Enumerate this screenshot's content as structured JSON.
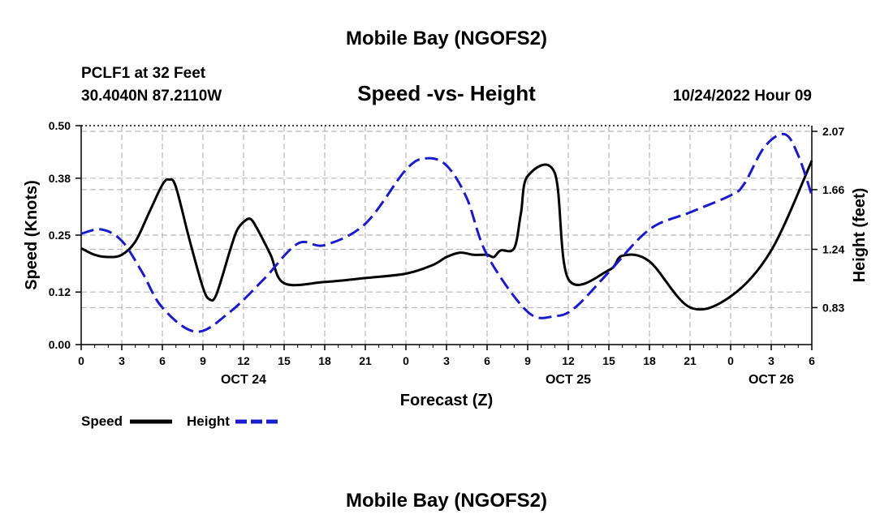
{
  "page": {
    "title": "Mobile Bay (NGOFS2)",
    "footer_title": "Mobile Bay (NGOFS2)",
    "station_line1": "PCLF1 at 32 Feet",
    "station_line2": "30.4040N  87.2110W",
    "subtitle": "Speed -vs- Height",
    "timestamp": "10/24/2022 Hour 09"
  },
  "chart_data": {
    "type": "line",
    "title": "Speed -vs- Height",
    "xlabel": "Forecast (Z)",
    "ylabel": "Speed (Knots)",
    "y2label": "Height (feet)",
    "xlim": [
      0,
      54
    ],
    "ylim": [
      0,
      0.5
    ],
    "y2lim": [
      0.57,
      2.11
    ],
    "grid": true,
    "legend_placement": "bottom-left",
    "x_ticks": [
      0,
      3,
      6,
      9,
      12,
      15,
      18,
      21,
      24,
      27,
      30,
      33,
      36,
      39,
      42,
      45,
      48,
      51,
      54
    ],
    "x_tick_labels": [
      "0",
      "3",
      "6",
      "9",
      "12",
      "15",
      "18",
      "21",
      "0",
      "3",
      "6",
      "9",
      "12",
      "15",
      "18",
      "21",
      "0",
      "3",
      "6"
    ],
    "date_labels": [
      {
        "x": 12,
        "label": "OCT 24"
      },
      {
        "x": 36,
        "label": "OCT 25"
      },
      {
        "x": 51,
        "label": "OCT 26"
      }
    ],
    "y_ticks": [
      0,
      0.12,
      0.25,
      0.38,
      0.5
    ],
    "y_tick_labels": [
      "0.00",
      "0.12",
      "0.25",
      "0.38",
      "0.50"
    ],
    "y2_ticks": [
      0.83,
      1.24,
      1.66,
      2.07
    ],
    "y2_tick_labels": [
      "0.83",
      "1.24",
      "1.66",
      "2.07"
    ],
    "series": [
      {
        "name": "Speed",
        "axis": "left",
        "color": "#000000",
        "dash": "solid",
        "x": [
          0,
          1,
          2,
          3,
          4,
          5,
          6,
          6.5,
          7,
          8,
          9,
          9.5,
          10,
          11,
          11.5,
          12,
          12.5,
          13,
          14,
          15,
          18,
          21,
          24,
          26,
          27,
          28,
          29,
          30,
          30.5,
          31,
          32,
          32.5,
          33,
          35,
          36,
          39,
          40,
          42,
          45,
          48,
          51,
          54
        ],
        "values": [
          0.22,
          0.205,
          0.2,
          0.205,
          0.235,
          0.3,
          0.365,
          0.377,
          0.36,
          0.24,
          0.13,
          0.103,
          0.115,
          0.215,
          0.26,
          0.28,
          0.287,
          0.265,
          0.205,
          0.14,
          0.143,
          0.152,
          0.162,
          0.182,
          0.2,
          0.21,
          0.205,
          0.205,
          0.2,
          0.215,
          0.22,
          0.3,
          0.385,
          0.392,
          0.15,
          0.17,
          0.203,
          0.19,
          0.085,
          0.11,
          0.215,
          0.42
        ]
      },
      {
        "name": "Height",
        "axis": "right",
        "color": "#1a1acd",
        "dash": "dashed",
        "x": [
          0,
          1.5,
          3,
          4.5,
          6,
          8.5,
          11,
          13.5,
          16,
          18,
          21,
          24,
          25.5,
          27,
          28.5,
          30,
          33,
          35,
          36.5,
          39,
          42,
          45,
          48,
          49,
          50.5,
          52,
          53,
          54
        ],
        "values": [
          1.35,
          1.38,
          1.3,
          1.08,
          0.83,
          0.66,
          0.8,
          1.03,
          1.28,
          1.27,
          1.42,
          1.8,
          1.88,
          1.83,
          1.6,
          1.2,
          0.8,
          0.77,
          0.83,
          1.08,
          1.38,
          1.5,
          1.62,
          1.7,
          1.96,
          2.05,
          1.9,
          1.62
        ]
      }
    ]
  }
}
